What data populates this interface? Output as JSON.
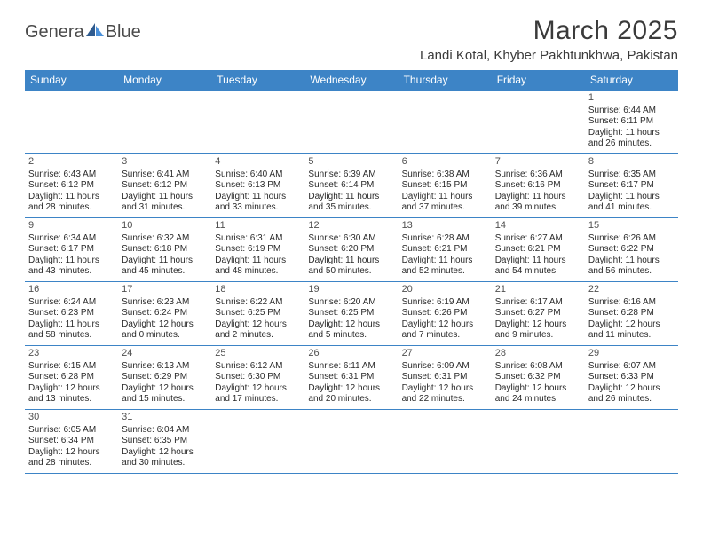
{
  "brand": {
    "part1": "Genera",
    "part2": "Blue"
  },
  "title": "March 2025",
  "location": "Landi Kotal, Khyber Pakhtunkhwa, Pakistan",
  "colors": {
    "header_bg": "#3d84c6",
    "header_text": "#ffffff",
    "border": "#3d84c6",
    "text": "#2a2a2a",
    "title_text": "#3a3a3a",
    "logo_text": "#4a4a4a",
    "logo_dark": "#2f5b8f",
    "logo_light": "#4a90d9"
  },
  "day_headers": [
    "Sunday",
    "Monday",
    "Tuesday",
    "Wednesday",
    "Thursday",
    "Friday",
    "Saturday"
  ],
  "weeks": [
    [
      null,
      null,
      null,
      null,
      null,
      null,
      {
        "n": "1",
        "sr": "6:44 AM",
        "ss": "6:11 PM",
        "dl": "11 hours and 26 minutes."
      }
    ],
    [
      {
        "n": "2",
        "sr": "6:43 AM",
        "ss": "6:12 PM",
        "dl": "11 hours and 28 minutes."
      },
      {
        "n": "3",
        "sr": "6:41 AM",
        "ss": "6:12 PM",
        "dl": "11 hours and 31 minutes."
      },
      {
        "n": "4",
        "sr": "6:40 AM",
        "ss": "6:13 PM",
        "dl": "11 hours and 33 minutes."
      },
      {
        "n": "5",
        "sr": "6:39 AM",
        "ss": "6:14 PM",
        "dl": "11 hours and 35 minutes."
      },
      {
        "n": "6",
        "sr": "6:38 AM",
        "ss": "6:15 PM",
        "dl": "11 hours and 37 minutes."
      },
      {
        "n": "7",
        "sr": "6:36 AM",
        "ss": "6:16 PM",
        "dl": "11 hours and 39 minutes."
      },
      {
        "n": "8",
        "sr": "6:35 AM",
        "ss": "6:17 PM",
        "dl": "11 hours and 41 minutes."
      }
    ],
    [
      {
        "n": "9",
        "sr": "6:34 AM",
        "ss": "6:17 PM",
        "dl": "11 hours and 43 minutes."
      },
      {
        "n": "10",
        "sr": "6:32 AM",
        "ss": "6:18 PM",
        "dl": "11 hours and 45 minutes."
      },
      {
        "n": "11",
        "sr": "6:31 AM",
        "ss": "6:19 PM",
        "dl": "11 hours and 48 minutes."
      },
      {
        "n": "12",
        "sr": "6:30 AM",
        "ss": "6:20 PM",
        "dl": "11 hours and 50 minutes."
      },
      {
        "n": "13",
        "sr": "6:28 AM",
        "ss": "6:21 PM",
        "dl": "11 hours and 52 minutes."
      },
      {
        "n": "14",
        "sr": "6:27 AM",
        "ss": "6:21 PM",
        "dl": "11 hours and 54 minutes."
      },
      {
        "n": "15",
        "sr": "6:26 AM",
        "ss": "6:22 PM",
        "dl": "11 hours and 56 minutes."
      }
    ],
    [
      {
        "n": "16",
        "sr": "6:24 AM",
        "ss": "6:23 PM",
        "dl": "11 hours and 58 minutes."
      },
      {
        "n": "17",
        "sr": "6:23 AM",
        "ss": "6:24 PM",
        "dl": "12 hours and 0 minutes."
      },
      {
        "n": "18",
        "sr": "6:22 AM",
        "ss": "6:25 PM",
        "dl": "12 hours and 2 minutes."
      },
      {
        "n": "19",
        "sr": "6:20 AM",
        "ss": "6:25 PM",
        "dl": "12 hours and 5 minutes."
      },
      {
        "n": "20",
        "sr": "6:19 AM",
        "ss": "6:26 PM",
        "dl": "12 hours and 7 minutes."
      },
      {
        "n": "21",
        "sr": "6:17 AM",
        "ss": "6:27 PM",
        "dl": "12 hours and 9 minutes."
      },
      {
        "n": "22",
        "sr": "6:16 AM",
        "ss": "6:28 PM",
        "dl": "12 hours and 11 minutes."
      }
    ],
    [
      {
        "n": "23",
        "sr": "6:15 AM",
        "ss": "6:28 PM",
        "dl": "12 hours and 13 minutes."
      },
      {
        "n": "24",
        "sr": "6:13 AM",
        "ss": "6:29 PM",
        "dl": "12 hours and 15 minutes."
      },
      {
        "n": "25",
        "sr": "6:12 AM",
        "ss": "6:30 PM",
        "dl": "12 hours and 17 minutes."
      },
      {
        "n": "26",
        "sr": "6:11 AM",
        "ss": "6:31 PM",
        "dl": "12 hours and 20 minutes."
      },
      {
        "n": "27",
        "sr": "6:09 AM",
        "ss": "6:31 PM",
        "dl": "12 hours and 22 minutes."
      },
      {
        "n": "28",
        "sr": "6:08 AM",
        "ss": "6:32 PM",
        "dl": "12 hours and 24 minutes."
      },
      {
        "n": "29",
        "sr": "6:07 AM",
        "ss": "6:33 PM",
        "dl": "12 hours and 26 minutes."
      }
    ],
    [
      {
        "n": "30",
        "sr": "6:05 AM",
        "ss": "6:34 PM",
        "dl": "12 hours and 28 minutes."
      },
      {
        "n": "31",
        "sr": "6:04 AM",
        "ss": "6:35 PM",
        "dl": "12 hours and 30 minutes."
      },
      null,
      null,
      null,
      null,
      null
    ]
  ],
  "labels": {
    "sunrise": "Sunrise: ",
    "sunset": "Sunset: ",
    "daylight": "Daylight: "
  }
}
